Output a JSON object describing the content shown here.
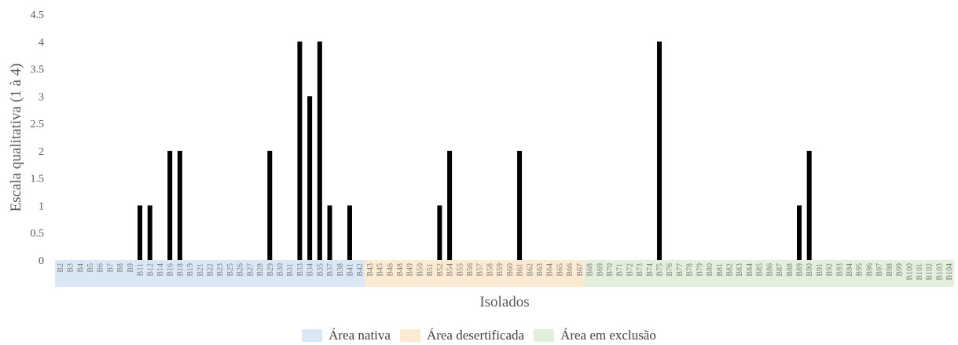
{
  "chart_data": {
    "type": "bar",
    "xlabel": "Isolados",
    "ylabel": "Escala qualitativa  (1  à 4)",
    "ylim": [
      0,
      4.5
    ],
    "yticks": [
      "0",
      "0.5",
      "1",
      "1.5",
      "2",
      "2.5",
      "3",
      "3.5",
      "4",
      "4.5"
    ],
    "grid": false,
    "legend_position": "bottom",
    "categories": [
      "B2",
      "B3",
      "B4",
      "B5",
      "B6",
      "B7",
      "B8",
      "B9",
      "B11",
      "B12",
      "B14",
      "B16",
      "B18",
      "B19",
      "B21",
      "B22",
      "B23",
      "B25",
      "B26",
      "B27",
      "B28",
      "B29",
      "B30",
      "B31",
      "B33",
      "B34",
      "B35",
      "B37",
      "B38",
      "B41",
      "B42",
      "B43",
      "B45",
      "B46",
      "B48",
      "B49",
      "B50",
      "B51",
      "B52",
      "B54",
      "B55",
      "B56",
      "B57",
      "B58",
      "B59",
      "B60",
      "B61",
      "B62",
      "B63",
      "B64",
      "B65",
      "B66",
      "B67",
      "B68",
      "B69",
      "B70",
      "B71",
      "B72",
      "B73",
      "B74",
      "B75",
      "B76",
      "B77",
      "B78",
      "B79",
      "B80",
      "B81",
      "B82",
      "B83",
      "B84",
      "B85",
      "B86",
      "B87",
      "B88",
      "B89",
      "B90",
      "B91",
      "B92",
      "B93",
      "B94",
      "B95",
      "B96",
      "B97",
      "B98",
      "B99",
      "B100",
      "B101",
      "B102",
      "B103",
      "B104"
    ],
    "values": [
      0,
      0,
      0,
      0,
      0,
      0,
      0,
      0,
      1,
      1,
      0,
      2,
      2,
      0,
      0,
      0,
      0,
      0,
      0,
      0,
      0,
      2,
      0,
      0,
      4,
      3,
      4,
      1,
      0,
      1,
      0,
      0,
      0,
      0,
      0,
      0,
      0,
      0,
      1,
      2,
      0,
      0,
      0,
      0,
      0,
      0,
      2,
      0,
      0,
      0,
      0,
      0,
      0,
      0,
      0,
      0,
      0,
      0,
      0,
      0,
      4,
      0,
      0,
      0,
      0,
      0,
      0,
      0,
      0,
      0,
      0,
      0,
      0,
      0,
      1,
      2,
      0,
      0,
      0,
      0,
      0,
      0,
      0,
      0,
      0,
      0,
      0,
      0,
      0,
      0
    ],
    "bar_color": "#000000",
    "groups": [
      {
        "name": "Área nativa",
        "start": 0,
        "end": 30,
        "color": "#dae8f5"
      },
      {
        "name": "Área desertificada",
        "start": 31,
        "end": 52,
        "color": "#fcebd1"
      },
      {
        "name": "Área em exclusão",
        "start": 53,
        "end": 89,
        "color": "#e2efda"
      }
    ]
  }
}
